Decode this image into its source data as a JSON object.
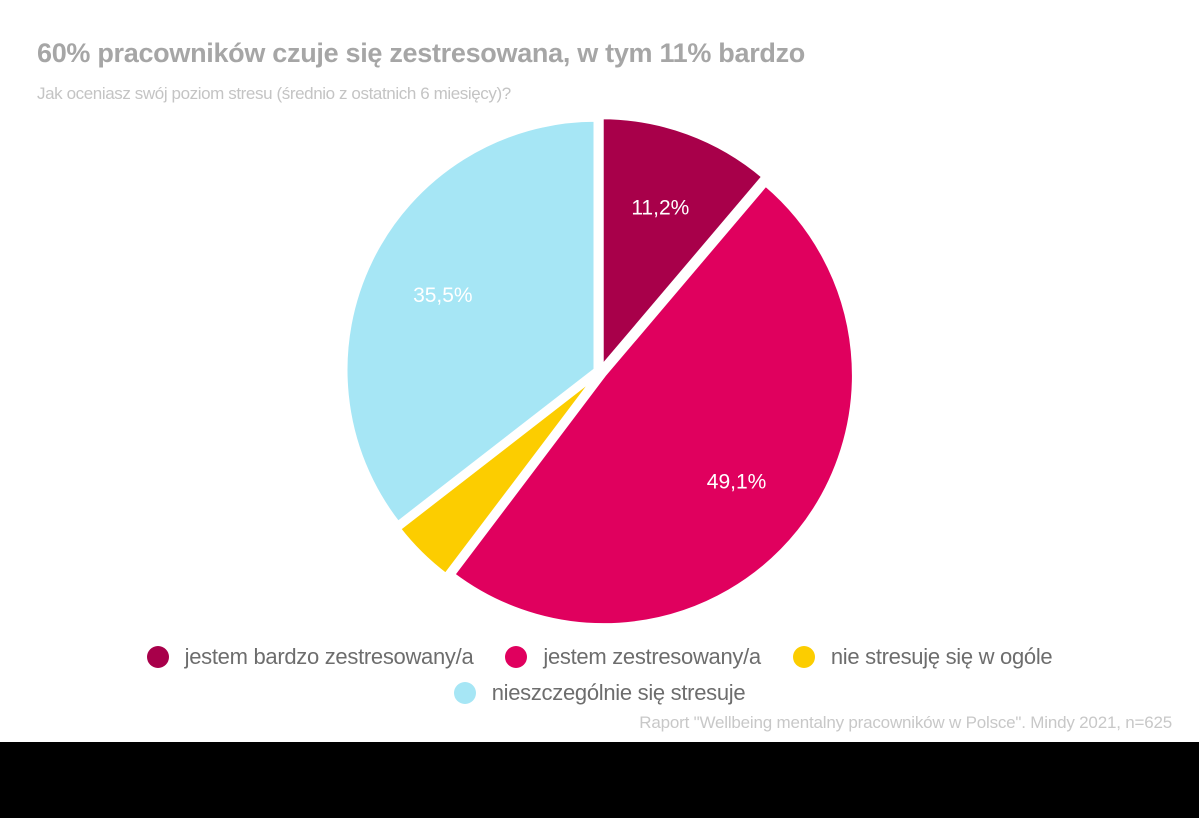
{
  "title": "60% pracowników czuje się zestresowana, w tym 11% bardzo",
  "subtitle": "Jak oceniasz swój poziom stresu (średnio z ostatnich 6 miesięcy)?",
  "source": "Raport \"Wellbeing mentalny pracowników w Polsce\". Mindy 2021, n=625",
  "legend": [
    {
      "label": "jestem bardzo zestresowany/a",
      "color": "#a8004a"
    },
    {
      "label": "jestem zestresowany/a",
      "color": "#e0005e"
    },
    {
      "label": "nie stresuję się w ogóle",
      "color": "#fccd00"
    },
    {
      "label": "nieszczególnie się stresuje",
      "color": "#a6e6f5"
    }
  ],
  "chart_data": {
    "type": "pie",
    "title": "60% pracowników czuje się zestresowana, w tym 11% bardzo",
    "subtitle": "Jak oceniasz swój poziom stresu (średnio z ostatnich 6 miesięcy)?",
    "categories": [
      "jestem bardzo zestresowany/a",
      "jestem zestresowany/a",
      "nie stresuję się w ogóle",
      "nieszczególnie się stresuje"
    ],
    "values": [
      11.2,
      49.1,
      4.2,
      35.5
    ],
    "data_labels": [
      "11,2%",
      "49,1%",
      "",
      "35,5%"
    ],
    "colors": [
      "#a8004a",
      "#e0005e",
      "#fccd00",
      "#a6e6f5"
    ],
    "start_angle": "12 o'clock, clockwise",
    "legend_position": "bottom"
  }
}
